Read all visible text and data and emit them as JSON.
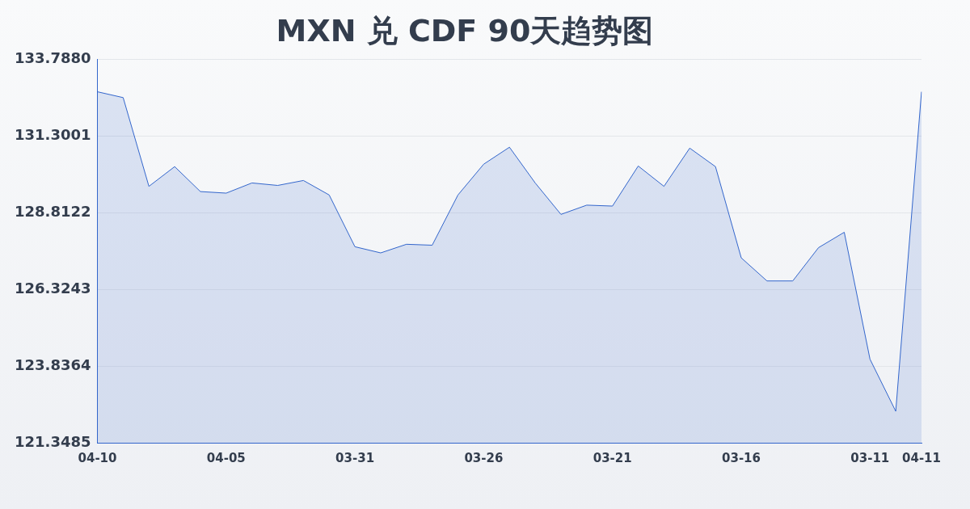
{
  "chart_data": {
    "type": "area",
    "title": "MXN 兑 CDF 90天趋势图",
    "categories": [
      "04-10",
      null,
      null,
      null,
      null,
      "04-05",
      null,
      null,
      null,
      null,
      "03-31",
      null,
      null,
      null,
      null,
      "03-26",
      null,
      null,
      null,
      null,
      "03-21",
      null,
      null,
      null,
      null,
      "03-16",
      null,
      null,
      null,
      null,
      "03-11",
      null,
      "04-11"
    ],
    "series": [
      {
        "color": "#3366cc",
        "values": [
          132.74,
          132.55,
          129.67,
          130.31,
          129.5,
          129.45,
          129.78,
          129.7,
          129.86,
          129.39,
          127.71,
          127.51,
          127.79,
          127.76,
          129.39,
          130.39,
          130.94,
          129.78,
          128.76,
          129.06,
          129.03,
          130.33,
          129.67,
          130.91,
          130.31,
          127.35,
          126.6,
          126.6,
          127.68,
          128.18,
          124.06,
          122.37,
          132.74
        ]
      }
    ],
    "ylim": [
      121.3485,
      133.788
    ],
    "yticks": [
      {
        "value": 121.3485,
        "label": "121.3485"
      },
      {
        "value": 123.8364,
        "label": "123.8364"
      },
      {
        "value": 126.3243,
        "label": "126.3243"
      },
      {
        "value": 128.8122,
        "label": "128.8122"
      },
      {
        "value": 131.3001,
        "label": "131.3001"
      },
      {
        "value": 133.788,
        "label": "133.7880"
      }
    ],
    "grid": "y",
    "legend": false,
    "marker": "none"
  }
}
